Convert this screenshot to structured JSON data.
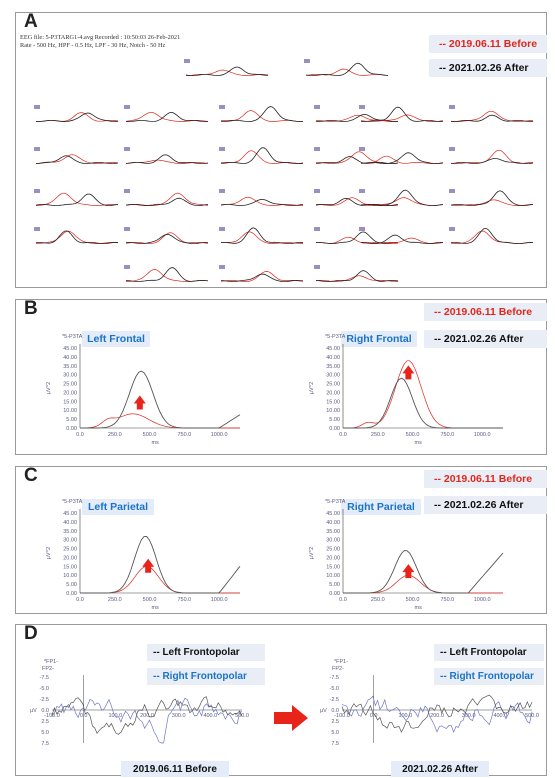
{
  "colors": {
    "before": "#e1261c",
    "after": "#222222",
    "blue_label": "#1a73c9",
    "label_box": "#e3ecf8",
    "trace_blue": "#6f78c8"
  },
  "panelA": {
    "label": "A",
    "header1": "EEG file: 5-P3TARG1-4.avg Recorded : 10:50:03 26-Feb-2021",
    "header2": "Rate - 500 Hz, HPF - 0.5 Hz, LPF - 30 Hz, Notch - 50 Hz",
    "legend_before": "-- 2019.06.11 Before",
    "legend_after": "-- 2021.02.26 After"
  },
  "panelB": {
    "label": "B",
    "legend_before": "-- 2019.06.11 Before",
    "legend_after": "-- 2021.02.26 After",
    "left_tag": "Left Frontal",
    "right_tag": "Right Frontal",
    "channel": "*5-P3TA",
    "ylabel": "µV^2",
    "xlabel": "ms",
    "yticks": [
      "45.00",
      "40.00",
      "35.00",
      "30.00",
      "25.00",
      "20.00",
      "15.00",
      "10.00",
      "5.00",
      "0.00"
    ],
    "xticks": [
      "0.0",
      "250.0",
      "500.0",
      "750.0",
      "1000.0"
    ]
  },
  "panelC": {
    "label": "C",
    "legend_before": "-- 2019.06.11 Before",
    "legend_after": "-- 2021.02.26 After",
    "left_tag": "Left Parietal",
    "right_tag": "Right Parietal",
    "channel": "*5-P3TA",
    "ylabel": "µV^2",
    "xlabel": "ms",
    "yticks": [
      "45.00",
      "40.00",
      "35.00",
      "30.00",
      "25.00",
      "20.00",
      "15.00",
      "10.00",
      "5.00",
      "0.00"
    ],
    "xticks": [
      "0.0",
      "250.0",
      "500.0",
      "750.0",
      "1000.0"
    ]
  },
  "panelD": {
    "label": "D",
    "legend_left": "-- Left Frontopolar",
    "legend_right": "-- Right Frontopolar",
    "fp1": "*FP1-",
    "fp2": "FP2-",
    "ylabel": "µV",
    "yticks": [
      "-7.5",
      "-5.0",
      "-2.5",
      "0.0",
      "2.5",
      "5.0",
      "7.5"
    ],
    "xticks": [
      "-100.0",
      "0.0",
      "100.0",
      "200.0",
      "300.0",
      "400.0",
      "500.0"
    ],
    "caption_left": "2019.06.11 Before",
    "caption_right": "2021.02.26 After"
  }
}
